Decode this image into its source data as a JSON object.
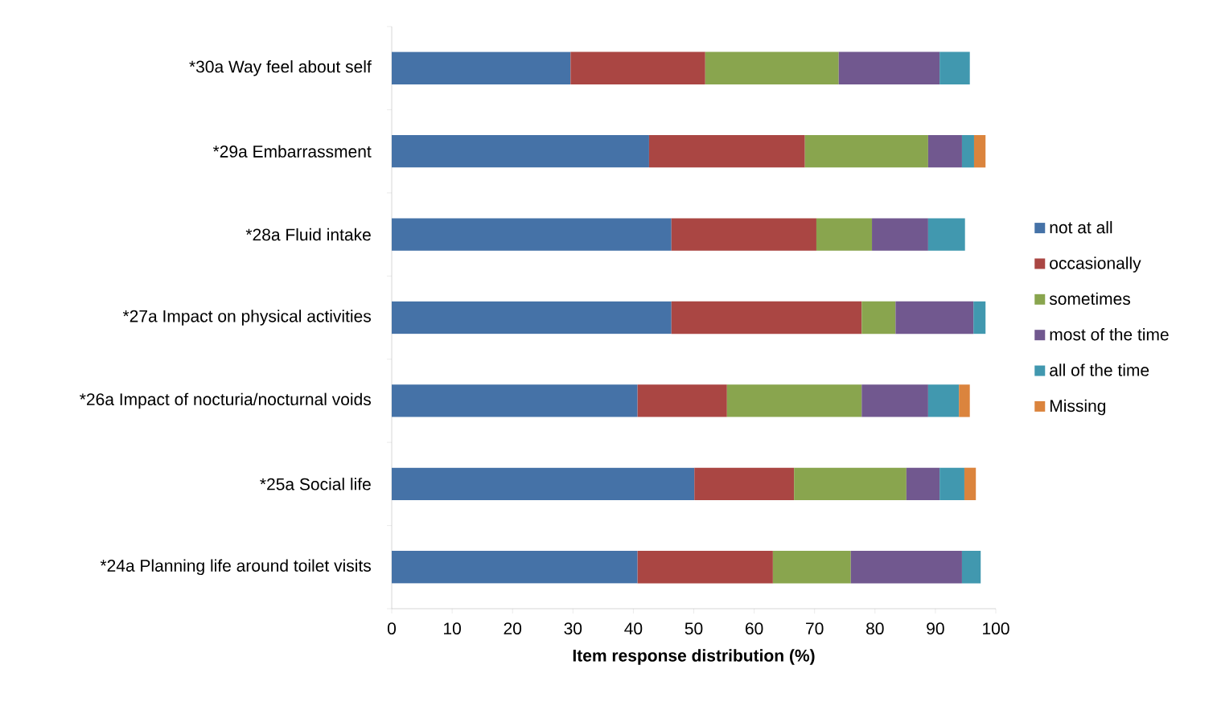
{
  "chart_data": {
    "type": "bar",
    "orientation": "horizontal",
    "stacked": true,
    "categories": [
      "*30a Way feel about self",
      "*29a Embarrassment",
      "*28a Fluid intake",
      "*27a Impact on physical activities",
      "*26a Impact of nocturia/nocturnal voids",
      "*25a Social life",
      "*24a Planning life around toilet visits"
    ],
    "series": [
      {
        "name": "not at all",
        "color": "#4572a7",
        "values": [
          29.6,
          42.6,
          46.3,
          46.3,
          40.7,
          50.1,
          40.7
        ]
      },
      {
        "name": "occasionally",
        "color": "#aa4643",
        "values": [
          22.3,
          25.8,
          24.0,
          31.5,
          14.8,
          16.5,
          22.4
        ]
      },
      {
        "name": "sometimes",
        "color": "#89a54e",
        "values": [
          22.1,
          20.4,
          9.2,
          5.6,
          22.3,
          18.6,
          12.9
        ]
      },
      {
        "name": "most of the time",
        "color": "#71588f",
        "values": [
          16.7,
          5.6,
          9.3,
          12.9,
          11.0,
          5.5,
          18.4
        ]
      },
      {
        "name": "all of the time",
        "color": "#4198af",
        "values": [
          5.0,
          2.0,
          6.1,
          2.0,
          5.1,
          4.1,
          3.1
        ]
      },
      {
        "name": "Missing",
        "color": "#db843d",
        "values": [
          null,
          1.9,
          null,
          null,
          1.8,
          1.9,
          null
        ]
      }
    ],
    "xlabel": "Item response distribution  (%)",
    "xlim": [
      0,
      100
    ],
    "xticks": [
      0,
      10,
      20,
      30,
      40,
      50,
      60,
      70,
      80,
      90,
      100
    ],
    "grid": false,
    "legend": "right"
  }
}
